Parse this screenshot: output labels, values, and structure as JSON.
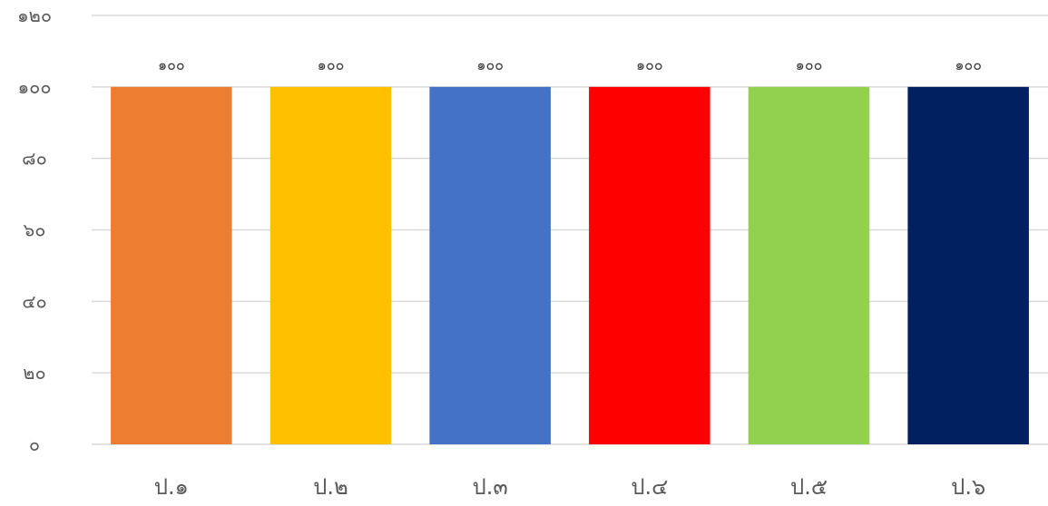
{
  "chart_data": {
    "type": "bar",
    "categories": [
      "ป.๑",
      "ป.๒",
      "ป.๓",
      "ป.๔",
      "ป.๕",
      "ป.๖"
    ],
    "values": [
      100,
      100,
      100,
      100,
      100,
      100
    ],
    "value_labels": [
      "๑๐๐",
      "๑๐๐",
      "๑๐๐",
      "๑๐๐",
      "๑๐๐",
      "๑๐๐"
    ],
    "bar_colors": [
      "#ED7D31",
      "#FFC000",
      "#4472C4",
      "#FF0000",
      "#92D050",
      "#002060"
    ],
    "y_ticks": [
      0,
      20,
      40,
      60,
      80,
      100,
      120
    ],
    "y_tick_labels": [
      "๐",
      "๒๐",
      "๔๐",
      "๖๐",
      "๘๐",
      "๑๐๐",
      "๑๒๐"
    ],
    "ylim": [
      0,
      120
    ],
    "grid": true,
    "legend": "none",
    "title": "",
    "xlabel": "",
    "ylabel": ""
  }
}
